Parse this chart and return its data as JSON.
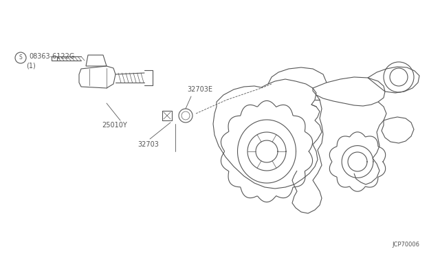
{
  "bg_color": "#ffffff",
  "line_color": "#555555",
  "fig_width": 6.4,
  "fig_height": 3.72,
  "dpi": 100,
  "labels": {
    "circled_s": "S",
    "part1": "08363-6122G",
    "part1_sub": "(1)",
    "part2": "32703E",
    "part3": "25010Y",
    "part4": "32703",
    "code": "JCP70006"
  },
  "font_size": 7,
  "code_font_size": 6
}
